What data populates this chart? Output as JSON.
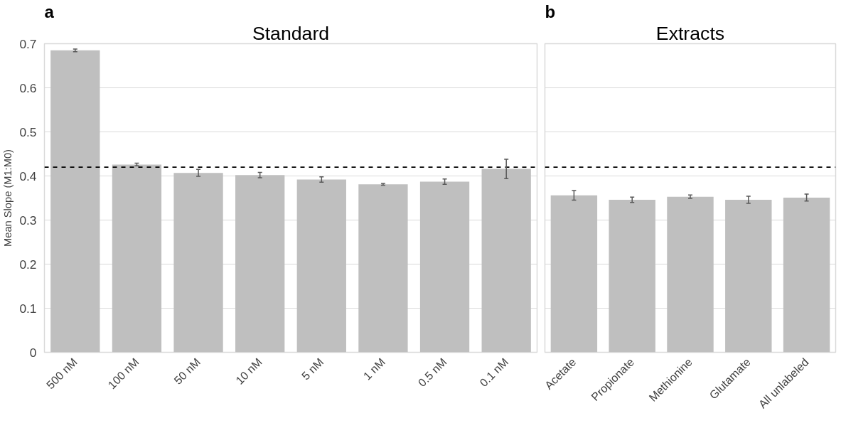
{
  "chart_data": [
    {
      "type": "bar",
      "title": "Standard",
      "ylabel": "Mean Slope (M1:M0)",
      "annotations": [
        "a"
      ],
      "categories": [
        "500 nM",
        "100 nM",
        "50 nM",
        "10 nM",
        "5 nM",
        "1 nM",
        "0.5 nM",
        "0.1 nM"
      ],
      "values": [
        0.685,
        0.426,
        0.407,
        0.402,
        0.392,
        0.381,
        0.387,
        0.416
      ],
      "errors": [
        0.003,
        0.003,
        0.008,
        0.006,
        0.006,
        0.002,
        0.006,
        0.022
      ],
      "color": "#bfbfbf",
      "ylim": [
        0,
        0.7
      ],
      "yticks": [
        {
          "value": 0,
          "label": "0"
        },
        0.1,
        0.2,
        0.3,
        0.4,
        0.5,
        0.6,
        0.7
      ],
      "grid": "y",
      "ref_lines": [
        {
          "axis": "y",
          "value": 0.42,
          "color": "#000000",
          "line_style": "dashed"
        }
      ]
    },
    {
      "type": "bar",
      "title": "Extracts",
      "annotations": [
        "b"
      ],
      "categories": [
        "Acetate",
        "Propionate",
        "Methionine",
        "Glutamate",
        "All unlabeled"
      ],
      "values": [
        0.356,
        0.346,
        0.353,
        0.346,
        0.351
      ],
      "errors": [
        0.011,
        0.006,
        0.004,
        0.008,
        0.008
      ],
      "color": "#bfbfbf",
      "ylim": [
        0,
        0.7
      ],
      "yticks": [
        0,
        0.1,
        0.2,
        0.3,
        0.4,
        0.5,
        0.6,
        0.7
      ],
      "grid": "y",
      "tick_labels": "x",
      "ref_lines": [
        {
          "axis": "y",
          "value": 0.42,
          "color": "#000000",
          "line_style": "dashed"
        }
      ]
    }
  ]
}
